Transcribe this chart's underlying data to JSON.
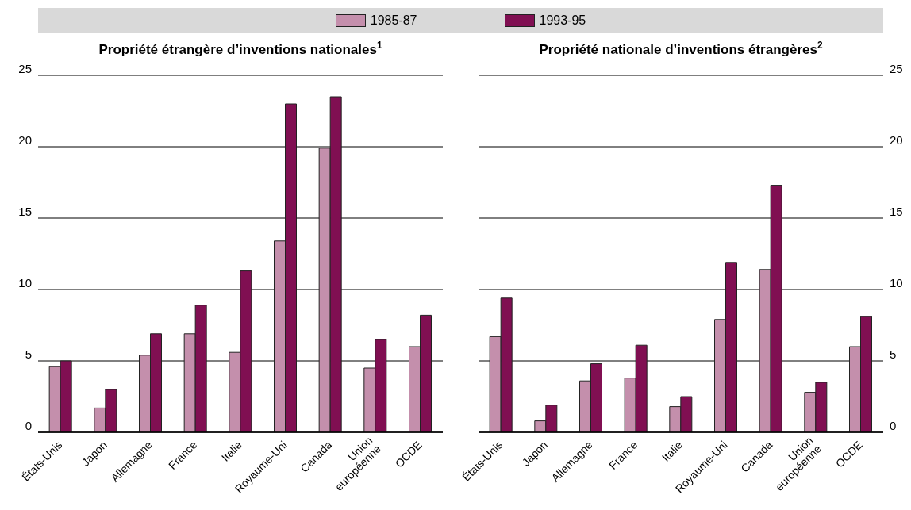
{
  "chart_data": [
    {
      "type": "bar",
      "title": "Propriété étrangère d’inventions nationales$^{1}$",
      "categories": [
        "États-Unis",
        "Japon",
        "Allemagne",
        "France",
        "Italie",
        "Royaume-Uni",
        "Canada",
        "Union européenne",
        "OCDE"
      ],
      "series": [
        {
          "name": "1985-87",
          "color": "#c48fac",
          "values": [
            4.6,
            1.7,
            5.4,
            6.9,
            5.6,
            13.4,
            19.9,
            4.5,
            6.0
          ]
        },
        {
          "name": "1993-95",
          "color": "#800f52",
          "values": [
            5.0,
            3.0,
            6.9,
            8.9,
            11.3,
            23.0,
            23.5,
            6.5,
            8.2
          ]
        }
      ],
      "ylim": [
        0,
        25
      ],
      "yticks": [
        0,
        5,
        10,
        15,
        20,
        25
      ],
      "grid": "y",
      "legend": "top"
    },
    {
      "type": "bar",
      "title": "Propriété nationale d’inventions étrangères$^{2}$",
      "categories": [
        "États-Unis",
        "Japon",
        "Allemagne",
        "France",
        "Italie",
        "Royaume-Uni",
        "Canada",
        "Union européenne",
        "OCDE"
      ],
      "series": [
        {
          "color": "#c48fac",
          "values": [
            6.7,
            0.8,
            3.6,
            3.8,
            1.8,
            7.9,
            11.4,
            2.8,
            6.0
          ]
        },
        {
          "color": "#800f52",
          "values": [
            9.4,
            1.9,
            4.8,
            6.1,
            2.5,
            11.9,
            17.3,
            3.5,
            8.1
          ]
        }
      ],
      "ylim": [
        0,
        25
      ],
      "yticks": [
        0,
        5,
        10,
        15,
        20,
        25
      ],
      "grid": "y"
    }
  ]
}
